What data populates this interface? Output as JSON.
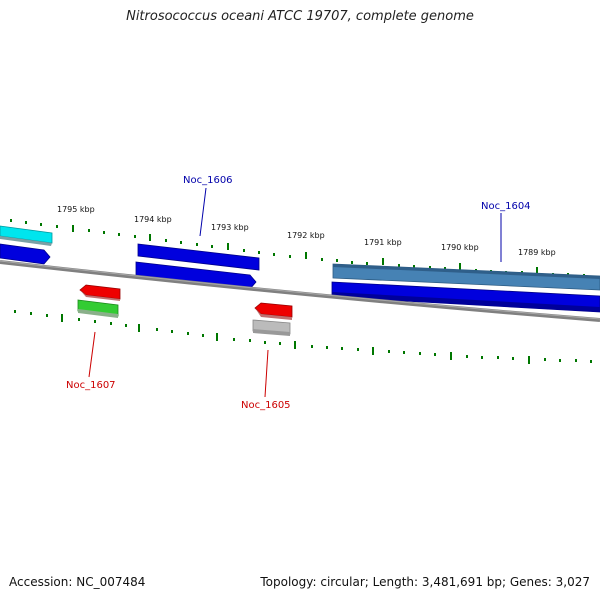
{
  "title": "Nitrosococcus oceani ATCC 19707, complete genome",
  "footer": {
    "accession": "Accession: NC_007484",
    "summary": "Topology: circular; Length: 3,481,691 bp; Genes: 3,027"
  },
  "colors": {
    "tick": "#007700",
    "backbone": "#808080",
    "cds_blue": "#0000dd",
    "cds_steelblue": "#4682b4",
    "cds_cyan": "#00e5ee",
    "gene_red": "#ee0000",
    "gene_green": "#33cc33",
    "gene_gray": "#bbbbbb",
    "label_blue": "#0000aa",
    "label_red": "#cc0000"
  },
  "kbp_labels": [
    "1795 kbp",
    "1794 kbp",
    "1793 kbp",
    "1792 kbp",
    "1791 kbp",
    "1790 kbp",
    "1789 kbp"
  ],
  "gene_labels": {
    "noc_1606": "Noc_1606",
    "noc_1604": "Noc_1604",
    "noc_1607": "Noc_1607",
    "noc_1605": "Noc_1605"
  }
}
